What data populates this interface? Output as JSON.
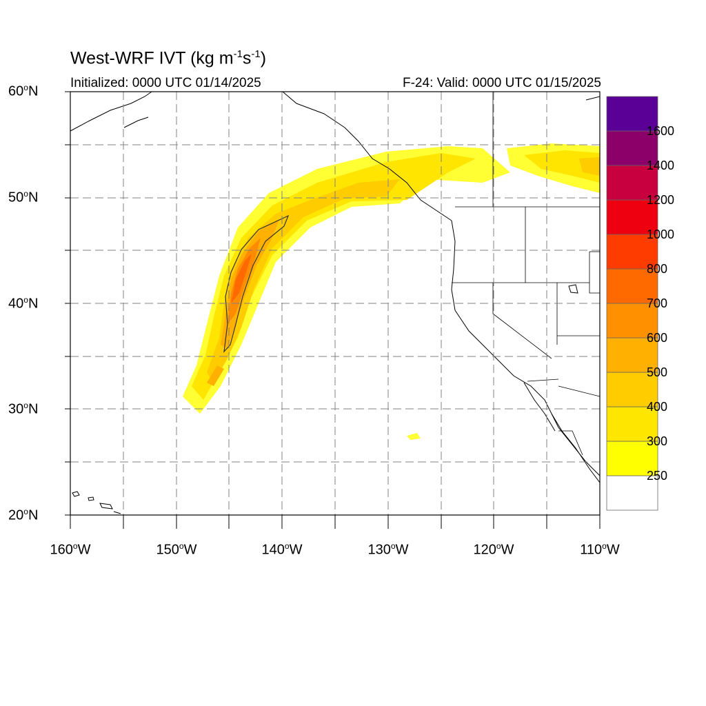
{
  "title": {
    "main": "West-WRF IVT (kg m",
    "exp1": "-1",
    "mid": "s",
    "exp2": "-1",
    "close": ")"
  },
  "initialized": "Initialized: 0000 UTC 01/14/2025",
  "valid": "F-24: Valid: 0000 UTC 01/15/2025",
  "lat_labels": [
    {
      "num": "60",
      "deg": "o",
      "hem": "N"
    },
    {
      "num": "50",
      "deg": "o",
      "hem": "N"
    },
    {
      "num": "40",
      "deg": "o",
      "hem": "N"
    },
    {
      "num": "30",
      "deg": "o",
      "hem": "N"
    },
    {
      "num": "20",
      "deg": "o",
      "hem": "N"
    }
  ],
  "lon_labels": [
    {
      "num": "160",
      "deg": "o",
      "hem": "W"
    },
    {
      "num": "150",
      "deg": "o",
      "hem": "W"
    },
    {
      "num": "140",
      "deg": "o",
      "hem": "W"
    },
    {
      "num": "130",
      "deg": "o",
      "hem": "W"
    },
    {
      "num": "120",
      "deg": "o",
      "hem": "W"
    },
    {
      "num": "110",
      "deg": "o",
      "hem": "W"
    }
  ],
  "colorbar": {
    "labels": [
      "250",
      "300",
      "400",
      "500",
      "600",
      "700",
      "800",
      "1000",
      "1200",
      "1400",
      "1600"
    ],
    "colors": [
      "#ffffff",
      "#ffff00",
      "#ffe600",
      "#ffcc00",
      "#ffb000",
      "#ff9000",
      "#ff6a00",
      "#ff3c00",
      "#ee0010",
      "#c80040",
      "#8c006a",
      "#5a0096"
    ]
  }
}
